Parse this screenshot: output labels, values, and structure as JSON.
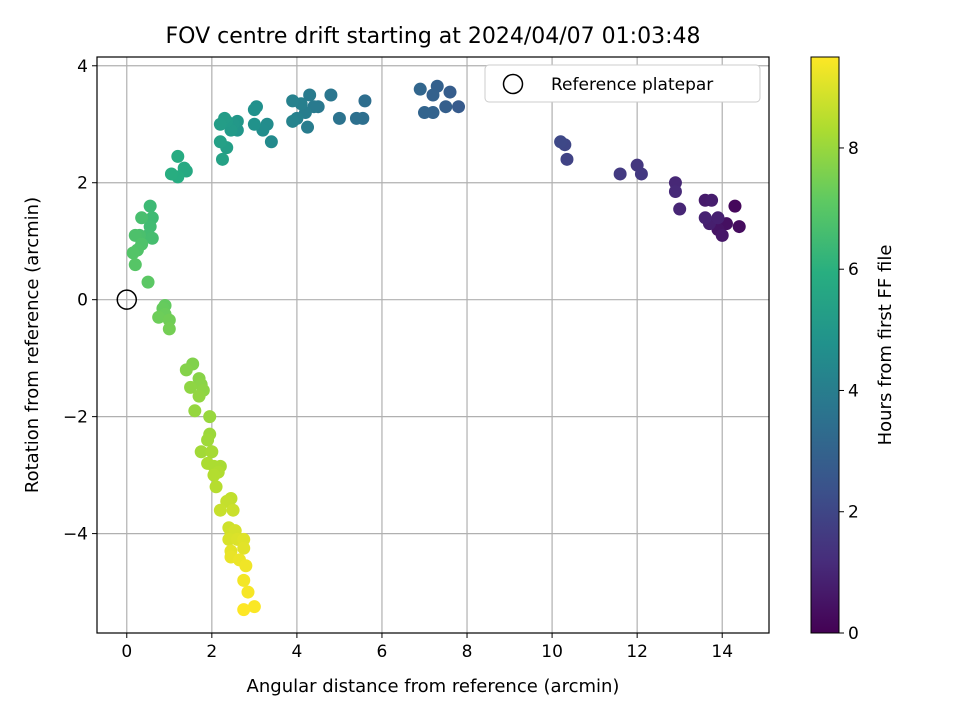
{
  "chart_data": {
    "type": "scatter",
    "title": "FOV centre drift starting at 2024/04/07 01:03:48",
    "xlabel": "Angular distance from reference (arcmin)",
    "ylabel": "Rotation from reference (arcmin)",
    "xlim": [
      -0.7,
      15.1
    ],
    "ylim": [
      -5.7,
      4.15
    ],
    "xticks": [
      0,
      2,
      4,
      6,
      8,
      10,
      12,
      14
    ],
    "yticks": [
      -4,
      -2,
      0,
      2,
      4
    ],
    "grid": true,
    "legend": {
      "placement": "top-right",
      "entries": [
        "Reference platepar"
      ]
    },
    "reference_point": {
      "x": 0,
      "y": 0,
      "label": "Reference platepar"
    },
    "colorbar": {
      "label": "Hours from first FF file",
      "range": [
        0,
        9.5
      ],
      "ticks": [
        0,
        2,
        4,
        6,
        8
      ],
      "colormap": "viridis"
    },
    "points": [
      {
        "x": 14.3,
        "y": 1.6,
        "t": 0.2
      },
      {
        "x": 14.4,
        "y": 1.25,
        "t": 0.3
      },
      {
        "x": 14.1,
        "y": 1.3,
        "t": 0.4
      },
      {
        "x": 13.9,
        "y": 1.2,
        "t": 0.5
      },
      {
        "x": 14.0,
        "y": 1.1,
        "t": 0.6
      },
      {
        "x": 13.6,
        "y": 1.7,
        "t": 0.7
      },
      {
        "x": 13.75,
        "y": 1.7,
        "t": 0.75
      },
      {
        "x": 13.7,
        "y": 1.3,
        "t": 0.8
      },
      {
        "x": 13.9,
        "y": 1.4,
        "t": 0.85
      },
      {
        "x": 13.6,
        "y": 1.4,
        "t": 0.9
      },
      {
        "x": 13.0,
        "y": 1.55,
        "t": 1.0
      },
      {
        "x": 12.9,
        "y": 2.0,
        "t": 1.05
      },
      {
        "x": 12.9,
        "y": 1.85,
        "t": 1.1
      },
      {
        "x": 12.0,
        "y": 2.3,
        "t": 1.5
      },
      {
        "x": 12.1,
        "y": 2.15,
        "t": 1.55
      },
      {
        "x": 11.6,
        "y": 2.15,
        "t": 1.6
      },
      {
        "x": 10.35,
        "y": 2.4,
        "t": 1.9
      },
      {
        "x": 10.3,
        "y": 2.65,
        "t": 2.0
      },
      {
        "x": 10.2,
        "y": 2.7,
        "t": 2.05
      },
      {
        "x": 7.8,
        "y": 3.3,
        "t": 2.7
      },
      {
        "x": 7.6,
        "y": 3.55,
        "t": 2.8
      },
      {
        "x": 7.5,
        "y": 3.3,
        "t": 2.85
      },
      {
        "x": 7.3,
        "y": 3.65,
        "t": 2.9
      },
      {
        "x": 7.2,
        "y": 3.5,
        "t": 2.95
      },
      {
        "x": 7.2,
        "y": 3.2,
        "t": 3.0
      },
      {
        "x": 7.0,
        "y": 3.2,
        "t": 3.05
      },
      {
        "x": 6.9,
        "y": 3.6,
        "t": 3.1
      },
      {
        "x": 5.6,
        "y": 3.4,
        "t": 3.4
      },
      {
        "x": 5.55,
        "y": 3.1,
        "t": 3.45
      },
      {
        "x": 5.4,
        "y": 3.1,
        "t": 3.5
      },
      {
        "x": 5.0,
        "y": 3.1,
        "t": 3.6
      },
      {
        "x": 4.8,
        "y": 3.5,
        "t": 3.7
      },
      {
        "x": 4.5,
        "y": 3.3,
        "t": 3.8
      },
      {
        "x": 4.4,
        "y": 3.3,
        "t": 3.85
      },
      {
        "x": 4.3,
        "y": 3.5,
        "t": 3.9
      },
      {
        "x": 4.25,
        "y": 2.95,
        "t": 3.95
      },
      {
        "x": 4.2,
        "y": 3.2,
        "t": 4.0
      },
      {
        "x": 4.1,
        "y": 3.35,
        "t": 4.05
      },
      {
        "x": 4.0,
        "y": 3.1,
        "t": 4.1
      },
      {
        "x": 3.9,
        "y": 3.4,
        "t": 4.15
      },
      {
        "x": 3.9,
        "y": 3.05,
        "t": 4.2
      },
      {
        "x": 3.4,
        "y": 2.7,
        "t": 4.5
      },
      {
        "x": 3.3,
        "y": 3.0,
        "t": 4.55
      },
      {
        "x": 3.2,
        "y": 2.9,
        "t": 4.6
      },
      {
        "x": 3.05,
        "y": 3.3,
        "t": 4.7
      },
      {
        "x": 3.0,
        "y": 3.25,
        "t": 4.75
      },
      {
        "x": 3.0,
        "y": 3.0,
        "t": 4.8
      },
      {
        "x": 2.6,
        "y": 2.9,
        "t": 4.95
      },
      {
        "x": 2.6,
        "y": 3.05,
        "t": 5.0
      },
      {
        "x": 2.5,
        "y": 3.0,
        "t": 5.05
      },
      {
        "x": 2.45,
        "y": 2.9,
        "t": 5.1
      },
      {
        "x": 2.35,
        "y": 3.05,
        "t": 5.15
      },
      {
        "x": 2.3,
        "y": 3.1,
        "t": 5.2
      },
      {
        "x": 2.2,
        "y": 3.0,
        "t": 5.25
      },
      {
        "x": 2.35,
        "y": 2.6,
        "t": 5.3
      },
      {
        "x": 2.2,
        "y": 2.7,
        "t": 5.35
      },
      {
        "x": 2.25,
        "y": 2.4,
        "t": 5.4
      },
      {
        "x": 1.4,
        "y": 2.2,
        "t": 5.7
      },
      {
        "x": 1.35,
        "y": 2.25,
        "t": 5.75
      },
      {
        "x": 1.2,
        "y": 2.45,
        "t": 5.8
      },
      {
        "x": 1.2,
        "y": 2.1,
        "t": 5.85
      },
      {
        "x": 1.05,
        "y": 2.15,
        "t": 5.9
      },
      {
        "x": 0.55,
        "y": 1.6,
        "t": 6.4
      },
      {
        "x": 0.6,
        "y": 1.4,
        "t": 6.45
      },
      {
        "x": 0.55,
        "y": 1.25,
        "t": 6.5
      },
      {
        "x": 0.5,
        "y": 1.1,
        "t": 6.55
      },
      {
        "x": 0.6,
        "y": 1.05,
        "t": 6.6
      },
      {
        "x": 0.35,
        "y": 1.4,
        "t": 6.65
      },
      {
        "x": 0.3,
        "y": 1.1,
        "t": 6.7
      },
      {
        "x": 0.2,
        "y": 1.1,
        "t": 6.75
      },
      {
        "x": 0.35,
        "y": 0.95,
        "t": 6.8
      },
      {
        "x": 0.25,
        "y": 0.85,
        "t": 6.85
      },
      {
        "x": 0.15,
        "y": 0.8,
        "t": 6.9
      },
      {
        "x": 0.2,
        "y": 0.6,
        "t": 6.95
      },
      {
        "x": 0.5,
        "y": 0.3,
        "t": 7.05
      },
      {
        "x": 0.9,
        "y": -0.1,
        "t": 7.2
      },
      {
        "x": 0.85,
        "y": -0.15,
        "t": 7.25
      },
      {
        "x": 0.9,
        "y": -0.25,
        "t": 7.3
      },
      {
        "x": 0.75,
        "y": -0.3,
        "t": 7.35
      },
      {
        "x": 1.0,
        "y": -0.35,
        "t": 7.4
      },
      {
        "x": 1.0,
        "y": -0.5,
        "t": 7.45
      },
      {
        "x": 1.55,
        "y": -1.1,
        "t": 7.65
      },
      {
        "x": 1.4,
        "y": -1.2,
        "t": 7.7
      },
      {
        "x": 1.7,
        "y": -1.35,
        "t": 7.75
      },
      {
        "x": 1.75,
        "y": -1.45,
        "t": 7.8
      },
      {
        "x": 1.8,
        "y": -1.55,
        "t": 7.85
      },
      {
        "x": 1.5,
        "y": -1.5,
        "t": 7.85
      },
      {
        "x": 1.7,
        "y": -1.65,
        "t": 7.9
      },
      {
        "x": 1.6,
        "y": -1.9,
        "t": 7.95
      },
      {
        "x": 1.95,
        "y": -2.0,
        "t": 8.0
      },
      {
        "x": 1.95,
        "y": -2.3,
        "t": 8.05
      },
      {
        "x": 1.9,
        "y": -2.4,
        "t": 8.1
      },
      {
        "x": 1.75,
        "y": -2.6,
        "t": 8.15
      },
      {
        "x": 2.0,
        "y": -2.6,
        "t": 8.2
      },
      {
        "x": 2.2,
        "y": -2.85,
        "t": 8.25
      },
      {
        "x": 1.9,
        "y": -2.8,
        "t": 8.3
      },
      {
        "x": 2.05,
        "y": -2.85,
        "t": 8.3
      },
      {
        "x": 2.15,
        "y": -2.95,
        "t": 8.35
      },
      {
        "x": 2.05,
        "y": -3.0,
        "t": 8.4
      },
      {
        "x": 2.1,
        "y": -3.2,
        "t": 8.45
      },
      {
        "x": 2.45,
        "y": -3.4,
        "t": 8.6
      },
      {
        "x": 2.35,
        "y": -3.45,
        "t": 8.65
      },
      {
        "x": 2.2,
        "y": -3.6,
        "t": 8.7
      },
      {
        "x": 2.5,
        "y": -3.6,
        "t": 8.75
      },
      {
        "x": 2.4,
        "y": -3.9,
        "t": 8.8
      },
      {
        "x": 2.45,
        "y": -4.0,
        "t": 8.85
      },
      {
        "x": 2.55,
        "y": -3.95,
        "t": 8.9
      },
      {
        "x": 2.4,
        "y": -4.1,
        "t": 8.95
      },
      {
        "x": 2.6,
        "y": -4.1,
        "t": 9.0
      },
      {
        "x": 2.75,
        "y": -4.1,
        "t": 9.05
      },
      {
        "x": 2.75,
        "y": -4.25,
        "t": 9.1
      },
      {
        "x": 2.45,
        "y": -4.3,
        "t": 9.15
      },
      {
        "x": 2.45,
        "y": -4.4,
        "t": 9.2
      },
      {
        "x": 2.65,
        "y": -4.45,
        "t": 9.25
      },
      {
        "x": 2.8,
        "y": -4.55,
        "t": 9.3
      },
      {
        "x": 2.75,
        "y": -4.8,
        "t": 9.35
      },
      {
        "x": 2.85,
        "y": -5.0,
        "t": 9.4
      },
      {
        "x": 3.0,
        "y": -5.25,
        "t": 9.45
      },
      {
        "x": 2.75,
        "y": -5.3,
        "t": 9.5
      }
    ]
  }
}
